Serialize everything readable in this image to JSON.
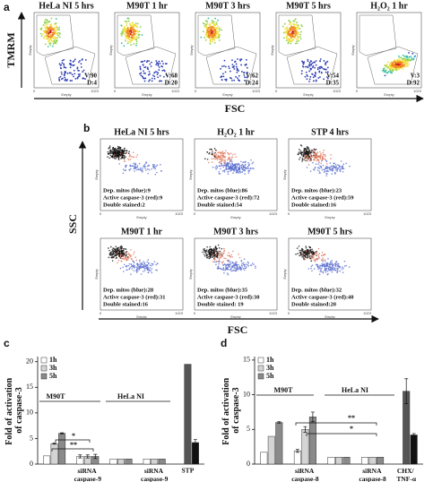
{
  "panels": {
    "a": {
      "label": "a",
      "y_label": "TMRM",
      "x_label": "FSC",
      "plots": [
        {
          "title": "HeLa NI 5 hrs",
          "stats": [
            "V:90",
            "D:4"
          ]
        },
        {
          "title": "M90T 1 hr",
          "stats": [
            "V:68",
            "D:20"
          ]
        },
        {
          "title": "M90T 3 hrs",
          "stats": [
            "V:62",
            "D:24"
          ]
        },
        {
          "title": "M90T 5 hrs",
          "stats": [
            "V:54",
            "D:35"
          ]
        },
        {
          "title": "H₂O₂ 1 hr",
          "stats": [
            "V:3",
            "D:92"
          ]
        }
      ]
    },
    "b": {
      "label": "b",
      "y_label": "SSC",
      "x_label": "FSC",
      "plots": [
        {
          "title": "HeLa NI 5 hrs",
          "stats": [
            "Dep. mitos (blue):9",
            "Active caspase-3 (red):9",
            "Double stained:2"
          ]
        },
        {
          "title": "H₂O₂ 1 hr",
          "stats": [
            "Dep. mitos (blue):86",
            "Active caspase-3 (red):72",
            "Double stained:54"
          ]
        },
        {
          "title": "STP 4 hrs",
          "stats": [
            "Dep. mitos (blue):23",
            "Active caspase-3 (red):59",
            "Double stained:16"
          ]
        },
        {
          "title": "M90T 1 hr",
          "stats": [
            "Dep. mitos (blue):28",
            "Active caspase-3 (red):31",
            "Double stained:16"
          ]
        },
        {
          "title": "M90T 3 hrs",
          "stats": [
            "Dep. mitos (blue):35",
            "Active caspase-3 (red):30",
            "Double stained: 19"
          ]
        },
        {
          "title": "M90T 5 hrs",
          "stats": [
            "Dep. mitos (blue):32",
            "Active caspase-3 (red):40",
            "Double stained:20"
          ]
        }
      ]
    },
    "axis_texts": {
      "empty": "Empty",
      "zero": "0",
      "max": "1023"
    }
  },
  "chart_data": [
    {
      "type": "bar",
      "panel_label": "c",
      "y_label": "Fold of activation of caspase-3",
      "categories": [
        null,
        "siRNA caspase-9",
        null,
        "siRNA caspase-9",
        "STP"
      ],
      "series": [
        {
          "name": "1h",
          "color": "#ffffff",
          "values": [
            1.6,
            1.5,
            1.0,
            1.0,
            null
          ],
          "errors": [
            0,
            0.3,
            0,
            0,
            null
          ]
        },
        {
          "name": "3h",
          "color": "#d4d4d4",
          "colors": [
            "#d4d4d4",
            "#d4d4d4",
            "#d4d4d4",
            "#d4d4d4",
            "#555555"
          ],
          "values": [
            4.0,
            1.5,
            1.0,
            1.0,
            19.5
          ],
          "errors": [
            0.1,
            0.3,
            0,
            0,
            0
          ]
        },
        {
          "name": "5h",
          "color": "#8a8a8a",
          "colors": [
            "#8a8a8a",
            "#8a8a8a",
            "#8a8a8a",
            "#8a8a8a",
            "#111111"
          ],
          "values": [
            6.0,
            1.5,
            1.0,
            1.0,
            4.2
          ],
          "errors": [
            0.1,
            0.4,
            0,
            0,
            0.6
          ]
        }
      ],
      "ylim": [
        0,
        21
      ],
      "yticks": [
        0,
        5,
        10,
        15,
        20
      ],
      "annotations": [
        {
          "text": "M90T"
        },
        {
          "text": "HeLa NI"
        },
        {
          "text": "*"
        },
        {
          "text": "**"
        }
      ]
    },
    {
      "type": "bar",
      "panel_label": "d",
      "y_label": "Fold of activation of caspase-3",
      "categories": [
        null,
        "siRNA caspase-8",
        null,
        "siRNA caspase-8",
        "CHX/ TNF-α"
      ],
      "series": [
        {
          "name": "1h",
          "color": "#ffffff",
          "values": [
            1.7,
            1.9,
            1.0,
            1.0,
            null
          ],
          "errors": [
            0,
            0.2,
            0,
            0,
            null
          ]
        },
        {
          "name": "3h",
          "color": "#d4d4d4",
          "colors": [
            "#d4d4d4",
            "#d4d4d4",
            "#d4d4d4",
            "#d4d4d4",
            "#555555"
          ],
          "values": [
            4.0,
            5.0,
            1.0,
            1.0,
            10.5
          ],
          "errors": [
            0,
            0.4,
            0,
            0,
            1.8
          ]
        },
        {
          "name": "5h",
          "color": "#8a8a8a",
          "colors": [
            "#8a8a8a",
            "#8a8a8a",
            "#8a8a8a",
            "#8a8a8a",
            "#111111"
          ],
          "values": [
            6.0,
            6.8,
            1.0,
            1.0,
            4.2
          ],
          "errors": [
            0.1,
            0.7,
            0,
            0,
            0.2
          ]
        }
      ],
      "ylim": [
        0,
        15.5
      ],
      "yticks": [
        0,
        5,
        10,
        15
      ],
      "annotations": [
        {
          "text": "M90T"
        },
        {
          "text": "HeLa NI"
        },
        {
          "text": "**"
        },
        {
          "text": "*"
        }
      ]
    }
  ]
}
